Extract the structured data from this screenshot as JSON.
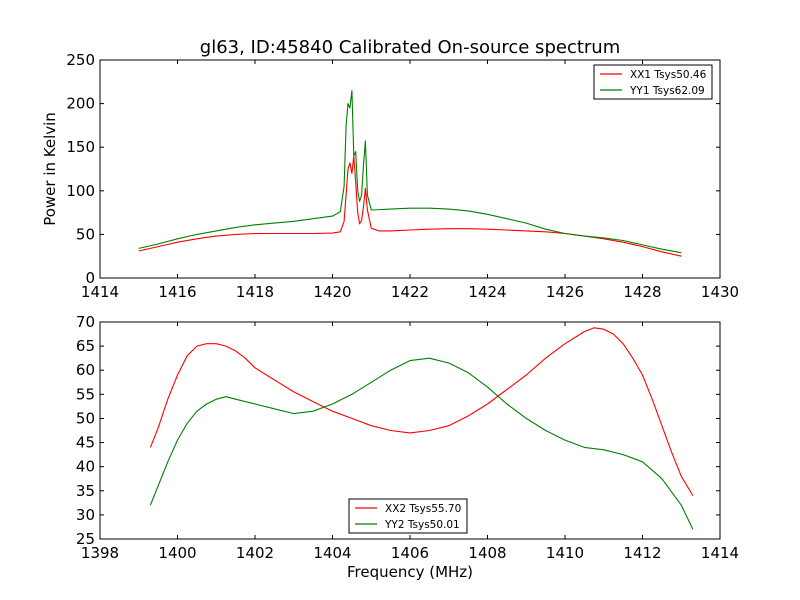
{
  "figure": {
    "title": "gl63, ID:45840 Calibrated On-source spectrum"
  },
  "chart_data": [
    {
      "type": "line",
      "title": "gl63, ID:45840 Calibrated On-source spectrum",
      "xlabel": "",
      "ylabel": "Power in Kelvin",
      "xlim": [
        1414,
        1430
      ],
      "ylim": [
        0,
        250
      ],
      "xticks": [
        "1414",
        "1416",
        "1418",
        "1420",
        "1422",
        "1424",
        "1426",
        "1428",
        "1430"
      ],
      "yticks": [
        "0",
        "50",
        "100",
        "150",
        "200",
        "250"
      ],
      "grid": false,
      "legend_position": "top-right",
      "series": [
        {
          "name": "XX1 Tsys50.46",
          "color": "#ff0000",
          "points": [
            [
              1415.0,
              31
            ],
            [
              1415.5,
              36
            ],
            [
              1416.0,
              41
            ],
            [
              1416.5,
              45
            ],
            [
              1417.0,
              48
            ],
            [
              1417.5,
              50
            ],
            [
              1418.0,
              51
            ],
            [
              1418.5,
              51
            ],
            [
              1419.0,
              51
            ],
            [
              1419.5,
              51
            ],
            [
              1420.0,
              51.5
            ],
            [
              1420.2,
              53
            ],
            [
              1420.3,
              65
            ],
            [
              1420.4,
              125
            ],
            [
              1420.45,
              132
            ],
            [
              1420.5,
              120
            ],
            [
              1420.55,
              140
            ],
            [
              1420.6,
              110
            ],
            [
              1420.65,
              75
            ],
            [
              1420.7,
              62
            ],
            [
              1420.75,
              66
            ],
            [
              1420.8,
              82
            ],
            [
              1420.85,
              103
            ],
            [
              1420.9,
              78
            ],
            [
              1421.0,
              57
            ],
            [
              1421.2,
              54
            ],
            [
              1421.5,
              54
            ],
            [
              1422.0,
              55
            ],
            [
              1422.5,
              56
            ],
            [
              1423.0,
              56.5
            ],
            [
              1423.5,
              56.5
            ],
            [
              1424.0,
              56
            ],
            [
              1424.5,
              55
            ],
            [
              1425.0,
              54
            ],
            [
              1425.5,
              53
            ],
            [
              1426.0,
              51
            ],
            [
              1426.5,
              48
            ],
            [
              1427.0,
              45
            ],
            [
              1427.5,
              41
            ],
            [
              1428.0,
              36
            ],
            [
              1428.5,
              30
            ],
            [
              1429.0,
              25
            ]
          ]
        },
        {
          "name": "YY1 Tsys62.09",
          "color": "#008000",
          "points": [
            [
              1415.0,
              34
            ],
            [
              1415.5,
              39
            ],
            [
              1416.0,
              45
            ],
            [
              1416.5,
              50
            ],
            [
              1417.0,
              54
            ],
            [
              1417.5,
              58
            ],
            [
              1418.0,
              61
            ],
            [
              1418.5,
              63
            ],
            [
              1419.0,
              65
            ],
            [
              1419.5,
              68
            ],
            [
              1420.0,
              71
            ],
            [
              1420.2,
              76
            ],
            [
              1420.3,
              105
            ],
            [
              1420.35,
              175
            ],
            [
              1420.4,
              200
            ],
            [
              1420.45,
              195
            ],
            [
              1420.5,
              215
            ],
            [
              1420.55,
              140
            ],
            [
              1420.6,
              145
            ],
            [
              1420.65,
              100
            ],
            [
              1420.7,
              88
            ],
            [
              1420.75,
              95
            ],
            [
              1420.8,
              130
            ],
            [
              1420.85,
              157
            ],
            [
              1420.9,
              95
            ],
            [
              1421.0,
              78
            ],
            [
              1421.5,
              79
            ],
            [
              1422.0,
              80
            ],
            [
              1422.5,
              80
            ],
            [
              1423.0,
              79
            ],
            [
              1423.5,
              77
            ],
            [
              1424.0,
              73
            ],
            [
              1424.5,
              68
            ],
            [
              1425.0,
              63
            ],
            [
              1425.5,
              56
            ],
            [
              1426.0,
              51
            ],
            [
              1426.5,
              48
            ],
            [
              1427.0,
              46
            ],
            [
              1427.5,
              43
            ],
            [
              1428.0,
              38
            ],
            [
              1428.5,
              33
            ],
            [
              1429.0,
              29
            ]
          ]
        }
      ]
    },
    {
      "type": "line",
      "title": "",
      "xlabel": "Frequency (MHz)",
      "ylabel": "",
      "xlim": [
        1398,
        1414
      ],
      "ylim": [
        25,
        70
      ],
      "xticks": [
        "1398",
        "1400",
        "1402",
        "1404",
        "1406",
        "1408",
        "1410",
        "1412",
        "1414"
      ],
      "yticks": [
        "25",
        "30",
        "35",
        "40",
        "45",
        "50",
        "55",
        "60",
        "65",
        "70"
      ],
      "grid": false,
      "legend_position": "lower-center",
      "series": [
        {
          "name": "XX2 Tsys55.70",
          "color": "#ff0000",
          "points": [
            [
              1399.3,
              44
            ],
            [
              1399.5,
              48
            ],
            [
              1399.75,
              54
            ],
            [
              1400.0,
              59
            ],
            [
              1400.25,
              63
            ],
            [
              1400.5,
              65
            ],
            [
              1400.75,
              65.5
            ],
            [
              1401.0,
              65.5
            ],
            [
              1401.25,
              65
            ],
            [
              1401.5,
              64
            ],
            [
              1401.75,
              62.5
            ],
            [
              1402.0,
              60.5
            ],
            [
              1402.5,
              58
            ],
            [
              1403.0,
              55.5
            ],
            [
              1403.5,
              53.5
            ],
            [
              1404.0,
              51.5
            ],
            [
              1404.5,
              50
            ],
            [
              1405.0,
              48.5
            ],
            [
              1405.5,
              47.5
            ],
            [
              1406.0,
              47
            ],
            [
              1406.5,
              47.5
            ],
            [
              1407.0,
              48.5
            ],
            [
              1407.5,
              50.5
            ],
            [
              1408.0,
              53
            ],
            [
              1408.5,
              56
            ],
            [
              1409.0,
              59
            ],
            [
              1409.5,
              62.5
            ],
            [
              1410.0,
              65.5
            ],
            [
              1410.5,
              68
            ],
            [
              1410.75,
              68.8
            ],
            [
              1411.0,
              68.5
            ],
            [
              1411.25,
              67.5
            ],
            [
              1411.5,
              65.5
            ],
            [
              1411.75,
              62.5
            ],
            [
              1412.0,
              59
            ],
            [
              1412.25,
              54
            ],
            [
              1412.5,
              48.5
            ],
            [
              1412.75,
              43
            ],
            [
              1413.0,
              38
            ],
            [
              1413.3,
              34
            ]
          ]
        },
        {
          "name": "YY2 Tsys50.01",
          "color": "#008000",
          "points": [
            [
              1399.3,
              32
            ],
            [
              1399.5,
              36
            ],
            [
              1399.75,
              41
            ],
            [
              1400.0,
              45.5
            ],
            [
              1400.25,
              49
            ],
            [
              1400.5,
              51.5
            ],
            [
              1400.75,
              53
            ],
            [
              1401.0,
              54
            ],
            [
              1401.25,
              54.5
            ],
            [
              1401.5,
              54
            ],
            [
              1402.0,
              53
            ],
            [
              1402.5,
              52
            ],
            [
              1403.0,
              51
            ],
            [
              1403.5,
              51.5
            ],
            [
              1404.0,
              53
            ],
            [
              1404.5,
              55
            ],
            [
              1405.0,
              57.5
            ],
            [
              1405.5,
              60
            ],
            [
              1406.0,
              62
            ],
            [
              1406.5,
              62.5
            ],
            [
              1407.0,
              61.5
            ],
            [
              1407.5,
              59.5
            ],
            [
              1408.0,
              56.5
            ],
            [
              1408.5,
              53
            ],
            [
              1409.0,
              50
            ],
            [
              1409.5,
              47.5
            ],
            [
              1410.0,
              45.5
            ],
            [
              1410.5,
              44
            ],
            [
              1411.0,
              43.5
            ],
            [
              1411.5,
              42.5
            ],
            [
              1412.0,
              41
            ],
            [
              1412.5,
              37.5
            ],
            [
              1413.0,
              32
            ],
            [
              1413.3,
              27
            ]
          ]
        }
      ]
    }
  ]
}
